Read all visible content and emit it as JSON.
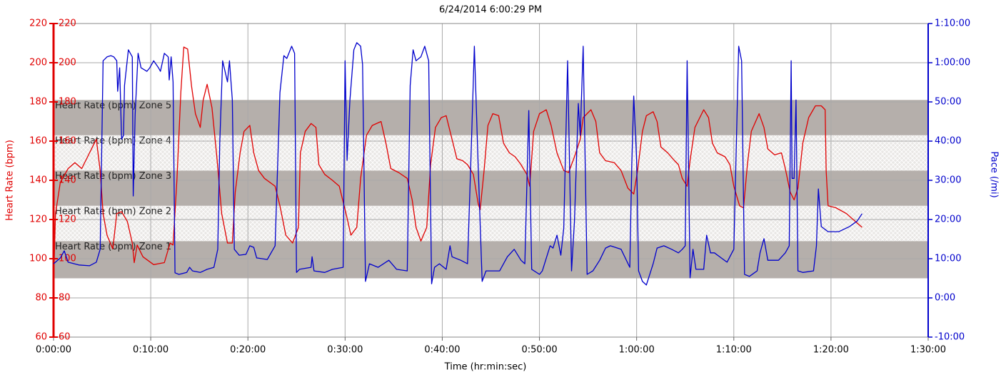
{
  "chart_data": {
    "type": "line",
    "title": "6/24/2014 6:00:29 PM",
    "x_label": "Time (hr:min:sec)",
    "y_label": "Heart Rate (bpm)",
    "y2_label": "Pace (/mi)",
    "xlim": [
      0,
      90
    ],
    "xticks": [
      {
        "value": 0,
        "label": "0:00:00"
      },
      {
        "value": 10,
        "label": "0:10:00"
      },
      {
        "value": 20,
        "label": "0:20:00"
      },
      {
        "value": 30,
        "label": "0:30:00"
      },
      {
        "value": 40,
        "label": "0:40:00"
      },
      {
        "value": 50,
        "label": "0:50:00"
      },
      {
        "value": 60,
        "label": "1:00:00"
      },
      {
        "value": 70,
        "label": "1:10:00"
      },
      {
        "value": 80,
        "label": "1:20:00"
      },
      {
        "value": 90,
        "label": "1:30:00"
      }
    ],
    "ylim": [
      60,
      220
    ],
    "yticks": [
      60,
      80,
      100,
      120,
      140,
      160,
      180,
      200,
      220
    ],
    "y2lim": [
      -10,
      70
    ],
    "y2ticks": [
      {
        "value": -10,
        "label": "-10:00"
      },
      {
        "value": 0,
        "label": "0:00"
      },
      {
        "value": 10,
        "label": "10:00"
      },
      {
        "value": 20,
        "label": "20:00"
      },
      {
        "value": 30,
        "label": "30:00"
      },
      {
        "value": 40,
        "label": "40:00"
      },
      {
        "value": 50,
        "label": "50:00"
      },
      {
        "value": 60,
        "label": "1:00:00"
      },
      {
        "value": 70,
        "label": "1:10:00"
      }
    ],
    "grid": true,
    "y_axis_color": "#e00000",
    "y2_axis_color": "#0000cc",
    "zones": [
      {
        "label": "Heart Rate (bpm) Zone 1",
        "min": 90,
        "max": 109,
        "color": "#b5afab",
        "style": "solid"
      },
      {
        "label": "Heart Rate (bpm) Zone 2",
        "min": 109,
        "max": 127,
        "color": "#e9e7e5",
        "style": "hatch"
      },
      {
        "label": "Heart Rate (bpm) Zone 3",
        "min": 127,
        "max": 145,
        "color": "#b5afab",
        "style": "solid"
      },
      {
        "label": "Heart Rate (bpm) Zone 4",
        "min": 145,
        "max": 163,
        "color": "#e9e7e5",
        "style": "hatch"
      },
      {
        "label": "Heart Rate (bpm) Zone 5",
        "min": 163,
        "max": 181,
        "color": "#b5afab",
        "style": "solid"
      }
    ],
    "series": [
      {
        "color": "#e00000",
        "axis": "y",
        "x": [
          0,
          0.2,
          0.7,
          1.5,
          2.2,
          2.9,
          3.7,
          4.4,
          4.8,
          5.1,
          5.5,
          6.1,
          6.5,
          7.0,
          7.6,
          8.1,
          8.3,
          8.6,
          9.2,
          10.3,
          11.4,
          12.0,
          12.3,
          12.7,
          13.1,
          13.4,
          13.8,
          14.2,
          14.6,
          15.1,
          15.4,
          15.8,
          16.3,
          16.8,
          17.3,
          17.9,
          18.4,
          18.7,
          19.2,
          19.6,
          20.2,
          20.6,
          21.1,
          21.7,
          22.8,
          23.3,
          23.9,
          24.6,
          25.2,
          25.4,
          25.9,
          26.5,
          27.0,
          27.3,
          27.9,
          28.7,
          29.4,
          30.1,
          30.6,
          31.2,
          31.6,
          32.2,
          32.8,
          33.7,
          34.2,
          34.7,
          35.5,
          36.4,
          36.9,
          37.3,
          37.8,
          38.4,
          38.8,
          39.3,
          39.9,
          40.4,
          40.9,
          41.5,
          42.1,
          42.6,
          43.2,
          43.7,
          43.9,
          44.3,
          44.7,
          45.2,
          45.8,
          46.3,
          46.9,
          47.5,
          48.1,
          48.7,
          49.0,
          49.4,
          50.0,
          50.7,
          51.2,
          51.8,
          52.5,
          53.0,
          53.6,
          54.2,
          54.5,
          55.3,
          55.8,
          56.2,
          56.8,
          57.7,
          58.4,
          59.1,
          59.7,
          60.1,
          60.6,
          61.0,
          61.7,
          62.1,
          62.5,
          63.2,
          63.9,
          64.3,
          64.7,
          65.2,
          65.5,
          66.0,
          66.9,
          67.4,
          67.8,
          68.3,
          69.1,
          69.6,
          70.0,
          70.6,
          71.0,
          71.4,
          71.8,
          72.6,
          73.1,
          73.5,
          74.2,
          74.9,
          75.3,
          75.8,
          76.2,
          76.6,
          77.1,
          77.7,
          78.4,
          79.0,
          79.4,
          79.5,
          79.7,
          80.5,
          81.6,
          83.2
        ],
        "values": [
          86,
          123,
          139,
          146,
          149,
          146,
          154,
          161,
          145,
          123,
          112,
          105,
          123,
          124,
          119,
          108,
          98,
          107,
          101,
          97,
          98,
          108,
          107,
          141,
          185,
          208,
          207,
          188,
          174,
          167,
          181,
          189,
          177,
          152,
          123,
          108,
          108,
          134,
          154,
          165,
          168,
          154,
          145,
          141,
          137,
          127,
          112,
          108,
          116,
          154,
          165,
          169,
          167,
          148,
          143,
          140,
          137,
          123,
          112,
          116,
          141,
          163,
          168,
          170,
          159,
          146,
          144,
          141,
          130,
          116,
          109,
          116,
          148,
          167,
          172,
          173,
          163,
          151,
          150,
          148,
          143,
          128,
          125,
          145,
          168,
          174,
          173,
          159,
          154,
          152,
          148,
          143,
          137,
          165,
          174,
          176,
          168,
          154,
          145,
          144,
          152,
          161,
          172,
          176,
          170,
          154,
          150,
          149,
          145,
          136,
          133,
          145,
          165,
          173,
          175,
          170,
          157,
          154,
          150,
          148,
          141,
          137,
          150,
          167,
          176,
          172,
          159,
          154,
          152,
          148,
          137,
          127,
          126,
          148,
          165,
          174,
          167,
          156,
          153,
          154,
          146,
          134,
          130,
          136,
          159,
          172,
          178,
          178,
          176,
          145,
          127,
          126,
          123,
          116
        ]
      },
      {
        "color": "#0000cc",
        "axis": "y2",
        "x": [
          0,
          0.2,
          0.7,
          1.1,
          1.5,
          2.6,
          3.7,
          4.4,
          4.8,
          5.1,
          5.5,
          5.9,
          6.2,
          6.5,
          6.6,
          6.8,
          7.0,
          7.2,
          7.3,
          7.7,
          8.1,
          8.2,
          8.4,
          8.7,
          9.0,
          9.6,
          9.9,
          10.3,
          10.8,
          11.0,
          11.4,
          11.8,
          11.9,
          12.1,
          12.3,
          12.5,
          12.9,
          13.7,
          14.0,
          14.3,
          15.1,
          15.8,
          16.5,
          16.9,
          17.1,
          17.4,
          17.9,
          18.1,
          18.4,
          18.6,
          19.1,
          19.8,
          20.2,
          20.6,
          20.9,
          22.0,
          22.8,
          23.3,
          23.7,
          24.0,
          24.5,
          24.8,
          25.0,
          25.3,
          26.5,
          26.6,
          26.8,
          27.9,
          28.7,
          29.8,
          30.0,
          30.2,
          30.5,
          30.9,
          31.2,
          31.6,
          31.8,
          32.1,
          32.5,
          33.4,
          34.5,
          35.3,
          36.4,
          36.7,
          37.0,
          37.3,
          37.8,
          38.2,
          38.6,
          38.9,
          39.2,
          39.7,
          40.4,
          40.8,
          41.0,
          41.9,
          42.6,
          43.0,
          43.3,
          43.7,
          44.1,
          44.5,
          45.9,
          46.7,
          47.4,
          48.1,
          48.5,
          48.9,
          49.2,
          50.0,
          50.3,
          51.1,
          51.4,
          51.8,
          52.2,
          52.5,
          52.9,
          53.3,
          53.6,
          54.0,
          54.2,
          54.5,
          54.9,
          55.5,
          56.2,
          56.8,
          57.3,
          58.4,
          59.3,
          59.5,
          59.7,
          60.0,
          60.2,
          60.6,
          61.0,
          61.7,
          62.1,
          62.8,
          63.6,
          64.3,
          64.7,
          65.0,
          65.2,
          65.5,
          65.8,
          66.1,
          66.9,
          67.2,
          67.6,
          68.0,
          68.7,
          69.3,
          69.8,
          70.0,
          70.5,
          70.8,
          71.1,
          71.6,
          72.4,
          72.7,
          73.1,
          73.5,
          74.6,
          75.3,
          75.7,
          75.9,
          76.0,
          76.2,
          76.4,
          76.6,
          77.1,
          78.2,
          78.5,
          78.7,
          79.0,
          79.7,
          80.8,
          81.9,
          82.7,
          83.2
        ],
        "values": [
          8.7,
          9.1,
          10.2,
          12.0,
          9.1,
          8.4,
          8.2,
          9.1,
          12.4,
          60.5,
          61.5,
          61.8,
          61.5,
          60.5,
          52.7,
          58.7,
          40.5,
          41.5,
          54.2,
          63.3,
          61.5,
          26.0,
          46.9,
          62.4,
          58.7,
          57.8,
          58.7,
          60.5,
          58.7,
          57.8,
          62.4,
          61.5,
          55.6,
          61.5,
          55.1,
          6.4,
          6.0,
          6.5,
          7.8,
          6.9,
          6.5,
          7.3,
          7.8,
          12.4,
          39.6,
          60.5,
          55.1,
          60.5,
          50.5,
          12.4,
          10.9,
          11.1,
          13.3,
          12.9,
          10.2,
          9.8,
          13.3,
          52.4,
          61.8,
          61.1,
          64.2,
          62.4,
          6.5,
          7.3,
          7.8,
          10.5,
          6.9,
          6.5,
          7.3,
          7.8,
          60.5,
          35.1,
          50.5,
          63.3,
          65.1,
          64.2,
          59.6,
          4.2,
          8.7,
          7.8,
          9.6,
          7.3,
          6.9,
          54.2,
          63.3,
          60.5,
          61.5,
          64.2,
          60.5,
          3.6,
          7.8,
          8.7,
          7.3,
          13.3,
          10.5,
          9.6,
          8.7,
          39.6,
          64.2,
          33.3,
          4.2,
          6.9,
          6.9,
          10.5,
          12.4,
          9.6,
          8.7,
          47.8,
          7.3,
          6.0,
          6.9,
          13.3,
          12.7,
          16.0,
          10.9,
          17.8,
          60.5,
          6.9,
          19.6,
          49.6,
          41.5,
          64.2,
          6.0,
          6.9,
          9.6,
          12.7,
          13.3,
          12.4,
          7.8,
          34.2,
          51.5,
          35.1,
          6.9,
          4.2,
          3.3,
          8.7,
          12.7,
          13.3,
          12.4,
          11.5,
          12.4,
          13.3,
          60.5,
          5.1,
          12.4,
          7.3,
          7.3,
          16.0,
          11.5,
          11.5,
          10.2,
          9.1,
          11.5,
          12.4,
          64.2,
          60.5,
          6.0,
          5.5,
          6.9,
          11.5,
          15.1,
          9.6,
          9.6,
          11.5,
          13.3,
          60.5,
          30.5,
          30.5,
          50.5,
          6.9,
          6.5,
          6.9,
          13.3,
          27.8,
          18.2,
          16.9,
          16.9,
          18.2,
          19.6,
          21.5
        ]
      }
    ]
  }
}
